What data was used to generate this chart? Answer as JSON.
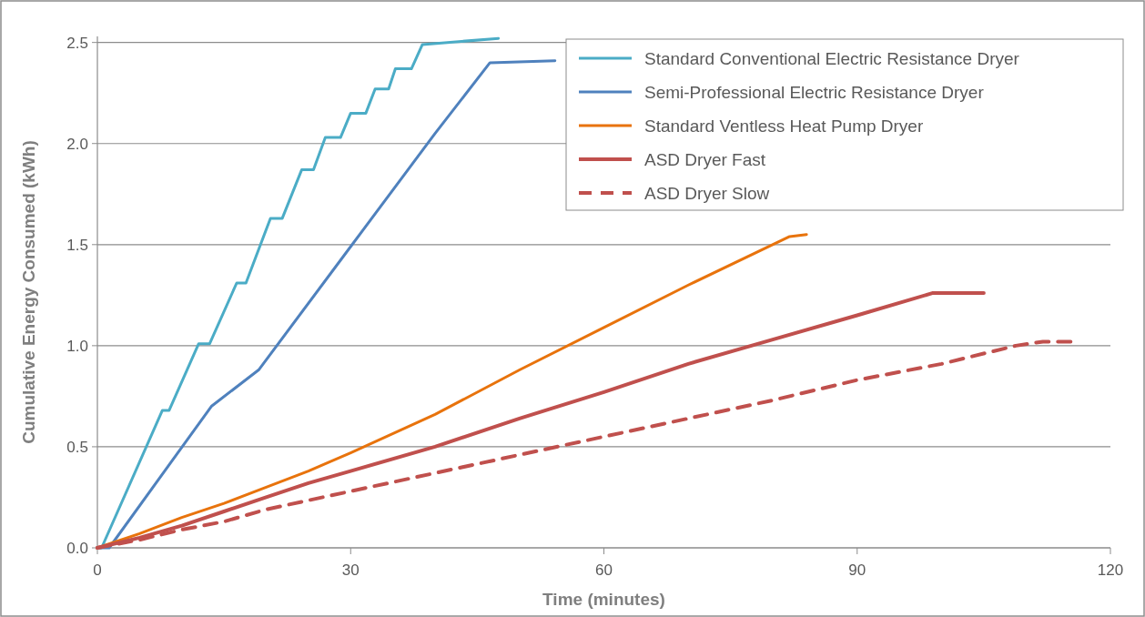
{
  "chart_data": {
    "type": "line",
    "xlabel": "Time (minutes)",
    "ylabel": "Cumulative Energy Consumed (kWh)",
    "xlim": [
      0,
      120
    ],
    "xticks": [
      0,
      30,
      60,
      90,
      120
    ],
    "ylim": [
      0,
      2.53
    ],
    "yticks": [
      {
        "value": 0,
        "label": "0.0"
      },
      {
        "value": 0.5,
        "label": "0.5"
      },
      {
        "value": 1,
        "label": "1.0"
      },
      {
        "value": 1.5,
        "label": "1.5"
      },
      {
        "value": 2,
        "label": "2.0"
      },
      {
        "value": 2.5,
        "label": "2.5"
      }
    ],
    "grid": "y",
    "legend": "top right",
    "marker": "none",
    "series": [
      {
        "name": "Standard Conventional Electric Resistance Dryer",
        "color": "#4bacc6",
        "line_style": "solid",
        "x": [
          0,
          0.5,
          7.7,
          8.5,
          12,
          13.3,
          16.5,
          17.6,
          20.5,
          21.9,
          24.2,
          25.6,
          27,
          28.8,
          30,
          31.8,
          32.9,
          34.5,
          35.3,
          37.2,
          38.5,
          47.5
        ],
        "values": [
          0,
          0,
          0.68,
          0.68,
          1.01,
          1.01,
          1.31,
          1.31,
          1.63,
          1.63,
          1.87,
          1.87,
          2.03,
          2.03,
          2.15,
          2.15,
          2.27,
          2.27,
          2.37,
          2.37,
          2.49,
          2.52
        ]
      },
      {
        "name": "Semi-Professional Electric Resistance Dryer",
        "color": "#4f81bd",
        "line_style": "solid",
        "x": [
          0,
          1.4,
          13.5,
          19.1,
          30,
          40,
          46.5,
          54.2
        ],
        "values": [
          0,
          0,
          0.7,
          0.88,
          1.49,
          2.05,
          2.4,
          2.41
        ]
      },
      {
        "name": "Standard Ventless Heat Pump Dryer",
        "color": "#e8730c",
        "line_style": "solid",
        "x": [
          0,
          5,
          10,
          15,
          20,
          25,
          30,
          40,
          50,
          60,
          70,
          82,
          84
        ],
        "values": [
          0,
          0.07,
          0.15,
          0.22,
          0.3,
          0.38,
          0.47,
          0.66,
          0.88,
          1.09,
          1.3,
          1.54,
          1.55
        ]
      },
      {
        "name": "ASD Dryer Fast",
        "color": "#c0504d",
        "line_style": "solid",
        "x": [
          0,
          5,
          10,
          15,
          20,
          25,
          30,
          40,
          50,
          60,
          70,
          80,
          90,
          98.9,
          105
        ],
        "values": [
          0,
          0.05,
          0.11,
          0.18,
          0.25,
          0.32,
          0.38,
          0.5,
          0.64,
          0.77,
          0.91,
          1.03,
          1.15,
          1.26,
          1.26
        ]
      },
      {
        "name": "ASD Dryer Slow",
        "color": "#c0504d",
        "line_style": "dashed",
        "x": [
          0,
          5,
          10,
          15,
          20,
          30,
          40,
          50,
          60,
          70,
          80,
          90,
          100,
          108.8,
          112,
          115.5
        ],
        "values": [
          0,
          0.04,
          0.09,
          0.13,
          0.19,
          0.28,
          0.37,
          0.46,
          0.55,
          0.64,
          0.73,
          0.83,
          0.91,
          1,
          1.02,
          1.02
        ]
      }
    ]
  }
}
